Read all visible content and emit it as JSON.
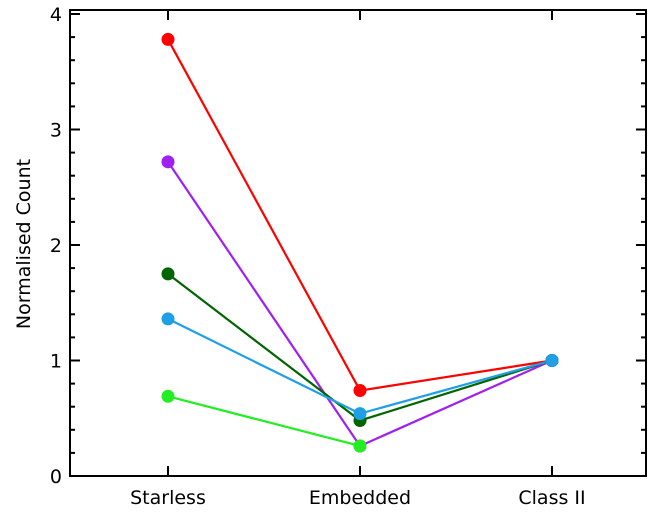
{
  "chart_data": {
    "type": "line",
    "categories": [
      "Starless",
      "Embedded",
      "Class II"
    ],
    "xlabel": "",
    "ylabel": "Normalised Count",
    "ylim": [
      0,
      4
    ],
    "yticks": [
      "0",
      "1",
      "2",
      "3",
      "4"
    ],
    "grid": false,
    "legend": "none",
    "series": [
      {
        "color": "#ff0000",
        "values": [
          3.78,
          0.74,
          1.0
        ]
      },
      {
        "color": "#a020f0",
        "values": [
          2.72,
          0.26,
          1.0
        ]
      },
      {
        "color": "#006400",
        "values": [
          1.75,
          0.48,
          1.0
        ]
      },
      {
        "color": "#1e9fe6",
        "values": [
          1.36,
          0.54,
          1.0
        ]
      },
      {
        "color": "#22ee22",
        "values": [
          0.69,
          0.26,
          null
        ]
      }
    ]
  }
}
